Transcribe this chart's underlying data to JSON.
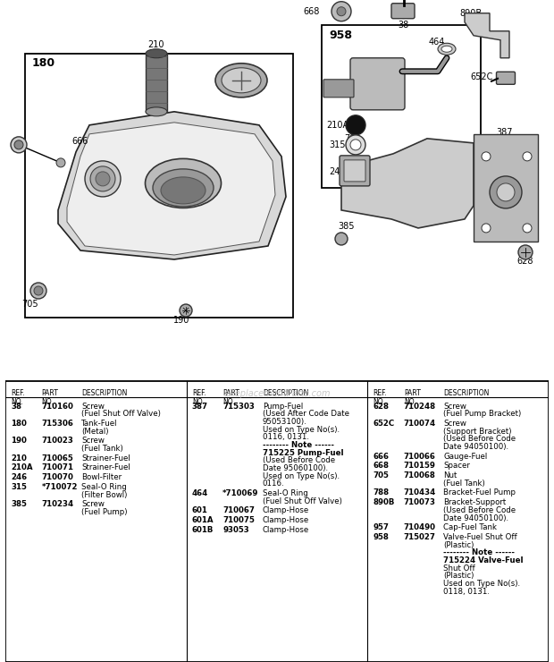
{
  "bg_color": "#ffffff",
  "watermark": "eReplacementParts.com",
  "col1_entries": [
    {
      "ref": "38",
      "part": "710160",
      "desc": [
        "Screw",
        "(Fuel Shut Off Valve)"
      ]
    },
    {
      "ref": "180",
      "part": "715306",
      "desc": [
        "Tank-Fuel",
        "(Metal)"
      ]
    },
    {
      "ref": "190",
      "part": "710023",
      "desc": [
        "Screw",
        "(Fuel Tank)"
      ]
    },
    {
      "ref": "210",
      "part": "710065",
      "desc": [
        "Strainer-Fuel"
      ]
    },
    {
      "ref": "210A",
      "part": "710071",
      "desc": [
        "Strainer-Fuel"
      ]
    },
    {
      "ref": "246",
      "part": "710070",
      "desc": [
        "Bowl-Filter"
      ]
    },
    {
      "ref": "315",
      "part": "*710072",
      "desc": [
        "Seal-O Ring",
        "(Filter Bowl)"
      ]
    },
    {
      "ref": "385",
      "part": "710234",
      "desc": [
        "Screw",
        "(Fuel Pump)"
      ]
    }
  ],
  "col2_entries": [
    {
      "ref": "387",
      "part": "715303",
      "desc": [
        "Pump-Fuel",
        "(Used After Code Date",
        "95053100).",
        "Used on Type No(s).",
        "0116, 0131.",
        "-------- Note ------",
        "715225 Pump-Fuel",
        "(Used Before Code",
        "Date 95060100).",
        "Used on Type No(s).",
        "0116."
      ]
    },
    {
      "ref": "464",
      "part": "*710069",
      "desc": [
        "Seal-O Ring",
        "(Fuel Shut Off Valve)"
      ]
    },
    {
      "ref": "601",
      "part": "710067",
      "desc": [
        "Clamp-Hose"
      ]
    },
    {
      "ref": "601A",
      "part": "710075",
      "desc": [
        "Clamp-Hose"
      ]
    },
    {
      "ref": "601B",
      "part": "93053",
      "desc": [
        "Clamp-Hose"
      ]
    }
  ],
  "col3_entries": [
    {
      "ref": "628",
      "part": "710248",
      "desc": [
        "Screw",
        "(Fuel Pump Bracket)"
      ]
    },
    {
      "ref": "652C",
      "part": "710074",
      "desc": [
        "Screw",
        "(Support Bracket)",
        "(Used Before Code",
        "Date 94050100)."
      ]
    },
    {
      "ref": "666",
      "part": "710066",
      "desc": [
        "Gauge-Fuel"
      ]
    },
    {
      "ref": "668",
      "part": "710159",
      "desc": [
        "Spacer"
      ]
    },
    {
      "ref": "705",
      "part": "710068",
      "desc": [
        "Nut",
        "(Fuel Tank)"
      ]
    },
    {
      "ref": "788",
      "part": "710434",
      "desc": [
        "Bracket-Fuel Pump"
      ]
    },
    {
      "ref": "890B",
      "part": "710073",
      "desc": [
        "Bracket-Support",
        "(Used Before Code",
        "Date 94050100)."
      ]
    },
    {
      "ref": "957",
      "part": "710490",
      "desc": [
        "Cap-Fuel Tank"
      ]
    },
    {
      "ref": "958",
      "part": "715027",
      "desc": [
        "Valve-Fuel Shut Off",
        "(Plastic)",
        "-------- Note ------",
        "715224 Valve-Fuel",
        "Shut Off",
        "(Plastic)",
        "Used on Type No(s).",
        "0118, 0131."
      ]
    }
  ]
}
